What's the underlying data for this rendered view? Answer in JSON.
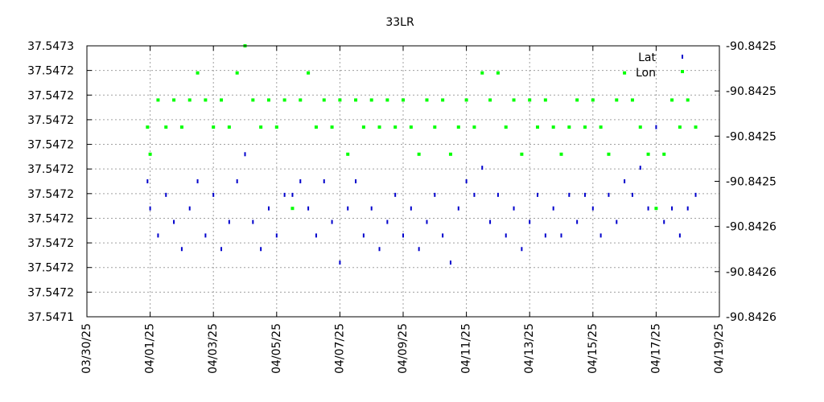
{
  "chart_data": {
    "type": "scatter",
    "title": "33LR",
    "xlabel": "",
    "ylabel": "",
    "y2label": "",
    "grid": true,
    "legend_position": "top-right",
    "x_range": [
      "2025-03-30",
      "2025-04-19"
    ],
    "x_tick_labels": [
      "03/30/25",
      "04/01/25",
      "04/03/25",
      "04/05/25",
      "04/07/25",
      "04/09/25",
      "04/11/25",
      "04/13/25",
      "04/15/25",
      "04/17/25",
      "04/19/25"
    ],
    "y_left_range": [
      37.5471,
      37.5473
    ],
    "y_left_tick_labels": [
      "37.5471",
      "37.5472",
      "37.5472",
      "37.5472",
      "37.5472",
      "37.5472",
      "37.5472",
      "37.5472",
      "37.5472",
      "37.5472",
      "37.5472",
      "37.5473"
    ],
    "y_right_range": [
      -90.8426,
      -90.8425
    ],
    "y_right_tick_labels": [
      "-90.8426",
      "-90.8426",
      "-90.8426",
      "-90.8425",
      "-90.8425",
      "-90.8425",
      "-90.8425"
    ],
    "series": [
      {
        "name": "Lat",
        "axis": "left",
        "color": "#0000cc",
        "marker": "short-vertical-dash",
        "points": [
          [
            "2025-03-31T22:00",
            37.5472
          ],
          [
            "2025-04-01T00:00",
            37.54718
          ],
          [
            "2025-04-01T06:00",
            37.54716
          ],
          [
            "2025-04-01T12:00",
            37.54719
          ],
          [
            "2025-04-01T18:00",
            37.54717
          ],
          [
            "2025-04-02T00:00",
            37.54715
          ],
          [
            "2025-04-02T06:00",
            37.54718
          ],
          [
            "2025-04-02T12:00",
            37.5472
          ],
          [
            "2025-04-02T18:00",
            37.54716
          ],
          [
            "2025-04-03T00:00",
            37.54719
          ],
          [
            "2025-04-03T06:00",
            37.54715
          ],
          [
            "2025-04-03T12:00",
            37.54717
          ],
          [
            "2025-04-03T18:00",
            37.5472
          ],
          [
            "2025-04-04T00:00",
            37.54722
          ],
          [
            "2025-04-04T06:00",
            37.54717
          ],
          [
            "2025-04-04T12:00",
            37.54715
          ],
          [
            "2025-04-04T18:00",
            37.54718
          ],
          [
            "2025-04-05T00:00",
            37.54716
          ],
          [
            "2025-04-05T06:00",
            37.54719
          ],
          [
            "2025-04-05T12:00",
            37.54719
          ],
          [
            "2025-04-05T18:00",
            37.5472
          ],
          [
            "2025-04-06T00:00",
            37.54718
          ],
          [
            "2025-04-06T06:00",
            37.54716
          ],
          [
            "2025-04-06T12:00",
            37.5472
          ],
          [
            "2025-04-06T18:00",
            37.54717
          ],
          [
            "2025-04-07T00:00",
            37.54714
          ],
          [
            "2025-04-07T06:00",
            37.54718
          ],
          [
            "2025-04-07T12:00",
            37.5472
          ],
          [
            "2025-04-07T18:00",
            37.54716
          ],
          [
            "2025-04-08T00:00",
            37.54718
          ],
          [
            "2025-04-08T06:00",
            37.54715
          ],
          [
            "2025-04-08T12:00",
            37.54717
          ],
          [
            "2025-04-08T18:00",
            37.54719
          ],
          [
            "2025-04-09T00:00",
            37.54716
          ],
          [
            "2025-04-09T06:00",
            37.54718
          ],
          [
            "2025-04-09T12:00",
            37.54715
          ],
          [
            "2025-04-09T18:00",
            37.54717
          ],
          [
            "2025-04-10T00:00",
            37.54719
          ],
          [
            "2025-04-10T06:00",
            37.54716
          ],
          [
            "2025-04-10T12:00",
            37.54714
          ],
          [
            "2025-04-10T18:00",
            37.54718
          ],
          [
            "2025-04-11T00:00",
            37.5472
          ],
          [
            "2025-04-11T06:00",
            37.54719
          ],
          [
            "2025-04-11T12:00",
            37.54721
          ],
          [
            "2025-04-11T18:00",
            37.54717
          ],
          [
            "2025-04-12T00:00",
            37.54719
          ],
          [
            "2025-04-12T06:00",
            37.54716
          ],
          [
            "2025-04-12T12:00",
            37.54718
          ],
          [
            "2025-04-12T18:00",
            37.54715
          ],
          [
            "2025-04-13T00:00",
            37.54717
          ],
          [
            "2025-04-13T06:00",
            37.54719
          ],
          [
            "2025-04-13T12:00",
            37.54716
          ],
          [
            "2025-04-13T18:00",
            37.54718
          ],
          [
            "2025-04-14T00:00",
            37.54716
          ],
          [
            "2025-04-14T06:00",
            37.54719
          ],
          [
            "2025-04-14T12:00",
            37.54717
          ],
          [
            "2025-04-14T18:00",
            37.54719
          ],
          [
            "2025-04-15T00:00",
            37.54718
          ],
          [
            "2025-04-15T06:00",
            37.54716
          ],
          [
            "2025-04-15T12:00",
            37.54719
          ],
          [
            "2025-04-15T18:00",
            37.54717
          ],
          [
            "2025-04-16T00:00",
            37.5472
          ],
          [
            "2025-04-16T06:00",
            37.54719
          ],
          [
            "2025-04-16T12:00",
            37.54721
          ],
          [
            "2025-04-16T18:00",
            37.54718
          ],
          [
            "2025-04-17T00:00",
            37.54724
          ],
          [
            "2025-04-17T06:00",
            37.54717
          ],
          [
            "2025-04-17T12:00",
            37.54718
          ],
          [
            "2025-04-17T18:00",
            37.54716
          ],
          [
            "2025-04-18T00:00",
            37.54718
          ],
          [
            "2025-04-18T06:00",
            37.54719
          ]
        ]
      },
      {
        "name": "Lon",
        "axis": "right",
        "color": "#00ff00",
        "marker": "square",
        "points": [
          [
            "2025-03-31T22:00",
            -90.84253
          ],
          [
            "2025-04-01T00:00",
            -90.84254
          ],
          [
            "2025-04-01T06:00",
            -90.84252
          ],
          [
            "2025-04-01T12:00",
            -90.84253
          ],
          [
            "2025-04-01T18:00",
            -90.84252
          ],
          [
            "2025-04-02T00:00",
            -90.84253
          ],
          [
            "2025-04-02T06:00",
            -90.84252
          ],
          [
            "2025-04-02T12:00",
            -90.84251
          ],
          [
            "2025-04-02T18:00",
            -90.84252
          ],
          [
            "2025-04-03T00:00",
            -90.84253
          ],
          [
            "2025-04-03T06:00",
            -90.84252
          ],
          [
            "2025-04-03T12:00",
            -90.84253
          ],
          [
            "2025-04-03T18:00",
            -90.84251
          ],
          [
            "2025-04-04T00:00",
            -90.8425
          ],
          [
            "2025-04-04T06:00",
            -90.84252
          ],
          [
            "2025-04-04T12:00",
            -90.84253
          ],
          [
            "2025-04-04T18:00",
            -90.84252
          ],
          [
            "2025-04-05T00:00",
            -90.84253
          ],
          [
            "2025-04-05T06:00",
            -90.84252
          ],
          [
            "2025-04-05T12:00",
            -90.84256
          ],
          [
            "2025-04-05T18:00",
            -90.84252
          ],
          [
            "2025-04-06T00:00",
            -90.84251
          ],
          [
            "2025-04-06T06:00",
            -90.84253
          ],
          [
            "2025-04-06T12:00",
            -90.84252
          ],
          [
            "2025-04-06T18:00",
            -90.84253
          ],
          [
            "2025-04-07T00:00",
            -90.84252
          ],
          [
            "2025-04-07T06:00",
            -90.84254
          ],
          [
            "2025-04-07T12:00",
            -90.84252
          ],
          [
            "2025-04-07T18:00",
            -90.84253
          ],
          [
            "2025-04-08T00:00",
            -90.84252
          ],
          [
            "2025-04-08T06:00",
            -90.84253
          ],
          [
            "2025-04-08T12:00",
            -90.84252
          ],
          [
            "2025-04-08T18:00",
            -90.84253
          ],
          [
            "2025-04-09T00:00",
            -90.84252
          ],
          [
            "2025-04-09T06:00",
            -90.84253
          ],
          [
            "2025-04-09T12:00",
            -90.84254
          ],
          [
            "2025-04-09T18:00",
            -90.84252
          ],
          [
            "2025-04-10T00:00",
            -90.84253
          ],
          [
            "2025-04-10T06:00",
            -90.84252
          ],
          [
            "2025-04-10T12:00",
            -90.84254
          ],
          [
            "2025-04-10T18:00",
            -90.84253
          ],
          [
            "2025-04-11T00:00",
            -90.84252
          ],
          [
            "2025-04-11T06:00",
            -90.84253
          ],
          [
            "2025-04-11T12:00",
            -90.84251
          ],
          [
            "2025-04-11T18:00",
            -90.84252
          ],
          [
            "2025-04-12T00:00",
            -90.84251
          ],
          [
            "2025-04-12T06:00",
            -90.84253
          ],
          [
            "2025-04-12T12:00",
            -90.84252
          ],
          [
            "2025-04-12T18:00",
            -90.84254
          ],
          [
            "2025-04-13T00:00",
            -90.84252
          ],
          [
            "2025-04-13T06:00",
            -90.84253
          ],
          [
            "2025-04-13T12:00",
            -90.84252
          ],
          [
            "2025-04-13T18:00",
            -90.84253
          ],
          [
            "2025-04-14T00:00",
            -90.84254
          ],
          [
            "2025-04-14T06:00",
            -90.84253
          ],
          [
            "2025-04-14T12:00",
            -90.84252
          ],
          [
            "2025-04-14T18:00",
            -90.84253
          ],
          [
            "2025-04-15T00:00",
            -90.84252
          ],
          [
            "2025-04-15T06:00",
            -90.84253
          ],
          [
            "2025-04-15T12:00",
            -90.84254
          ],
          [
            "2025-04-15T18:00",
            -90.84252
          ],
          [
            "2025-04-16T00:00",
            -90.84251
          ],
          [
            "2025-04-16T06:00",
            -90.84252
          ],
          [
            "2025-04-16T12:00",
            -90.84253
          ],
          [
            "2025-04-16T18:00",
            -90.84254
          ],
          [
            "2025-04-17T00:00",
            -90.84256
          ],
          [
            "2025-04-17T06:00",
            -90.84254
          ],
          [
            "2025-04-17T12:00",
            -90.84252
          ],
          [
            "2025-04-17T18:00",
            -90.84253
          ],
          [
            "2025-04-18T00:00",
            -90.84252
          ],
          [
            "2025-04-18T06:00",
            -90.84253
          ]
        ]
      }
    ]
  }
}
